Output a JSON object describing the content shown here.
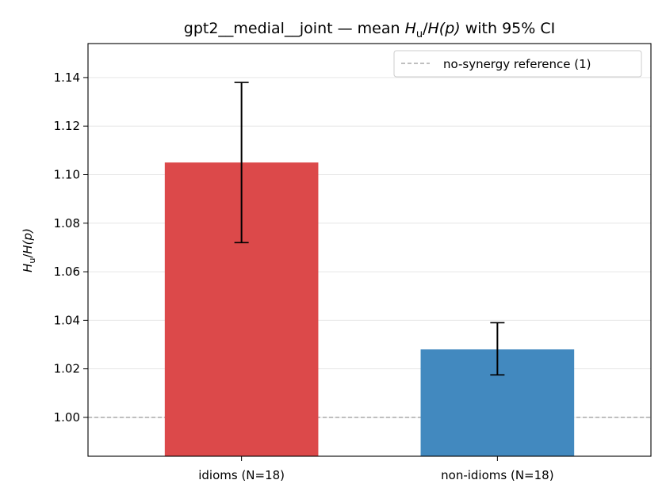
{
  "chart_data": {
    "type": "bar",
    "title_prefix": "gpt2__medial__joint — mean ",
    "title_suffix": " with 95% CI",
    "ratio_label": {
      "num": "H",
      "sub": "u",
      "den": "H(p)"
    },
    "categories": [
      "idioms (N=18)",
      "non-idioms (N=18)"
    ],
    "values": [
      1.105,
      1.028
    ],
    "ci_low": [
      1.072,
      1.0175
    ],
    "ci_high": [
      1.138,
      1.039
    ],
    "colors": [
      "#dc494a",
      "#4289bf"
    ],
    "ylim": [
      0.984,
      1.154
    ],
    "yticks": [
      "1.00",
      "1.02",
      "1.04",
      "1.06",
      "1.08",
      "1.10",
      "1.12",
      "1.14"
    ],
    "grid": "y",
    "reference": {
      "value": 1.0,
      "label": "no-synergy reference (1)",
      "color": "#999999"
    },
    "legend_position": "top-right"
  }
}
